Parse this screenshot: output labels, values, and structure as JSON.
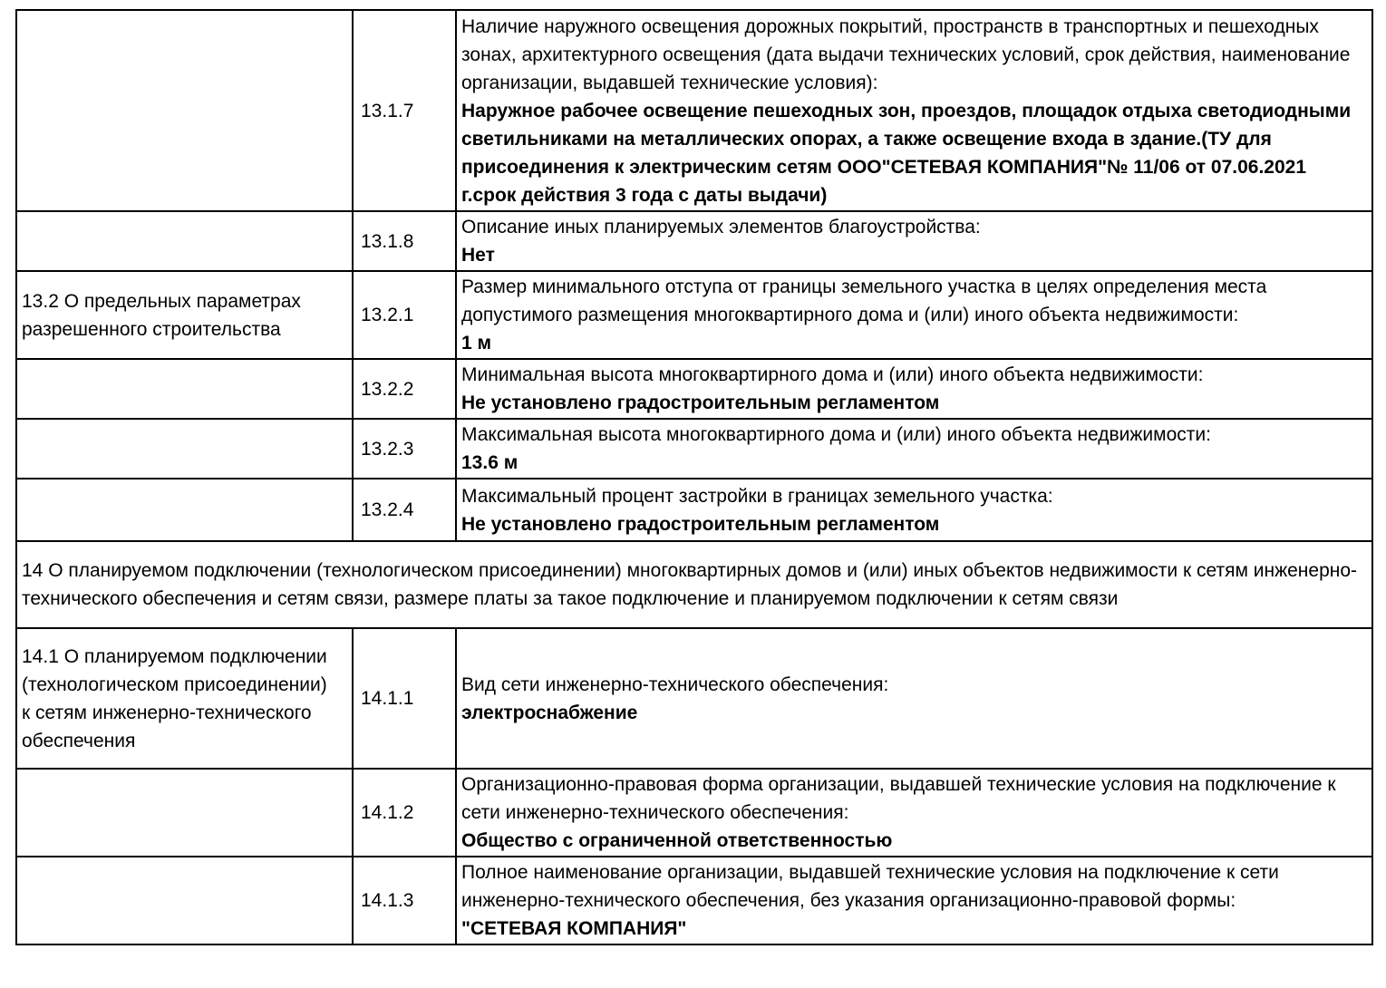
{
  "document": {
    "type": "project-declaration-table",
    "language": "ru",
    "text_color": "#000000",
    "border_color": "#000000",
    "background_color": "#ffffff",
    "table": {
      "rows": [
        {
          "type": "data",
          "section": "",
          "code": "13.1.7",
          "question": "Наличие наружного освещения дорожных покрытий, пространств в транспортных и пешеходных зонах, архитектурного освещения (дата выдачи технических условий, срок действия, наименование организации, выдавшей технические условия):",
          "answer": "Наружное рабочее освещение пешеходных зон, проездов, площадок отдыха светодиодными светильниками на металлических опорах, а также освещение входа в здание.(ТУ для присоединения к электрическим сетям ООО\"СЕТЕВАЯ КОМПАНИЯ\"№ 11/06 от 07.06.2021 г.срок действия 3 года с даты выдачи)"
        },
        {
          "type": "data",
          "section": "",
          "code": "13.1.8",
          "question": "Описание иных планируемых элементов благоустройства:",
          "answer": "Нет"
        },
        {
          "type": "data",
          "section": "13.2 О предельных параметрах разрешенного строительства",
          "code": "13.2.1",
          "question": "Размер минимального отступа от границы земельного участка в целях определения места допустимого размещения многоквартирного дома и (или) иного объекта недвижимости:",
          "answer": "1 м"
        },
        {
          "type": "data",
          "section": "",
          "code": "13.2.2",
          "question": "Минимальная высота многоквартирного дома и (или) иного объекта недвижимости:",
          "answer": "Не установлено градостроительным регламентом"
        },
        {
          "type": "data",
          "section": "",
          "code": "13.2.3",
          "question": "Максимальная высота многоквартирного дома и (или) иного объекта недвижимости:",
          "answer": "13.6 м"
        },
        {
          "type": "data",
          "section": "",
          "code": "13.2.4",
          "question": "Максимальный процент застройки в границах земельного участка:",
          "answer": "Не установлено градостроительным регламентом"
        },
        {
          "type": "section",
          "text": "14 О планируемом подключении (технологическом присоединении) многоквартирных домов и (или) иных объектов недвижимости к сетям инженерно-технического обеспечения и сетям связи, размере платы за такое подключение и планируемом подключении к сетям связи"
        },
        {
          "type": "data",
          "section": "14.1 О планируемом подключении (технологическом присоединении) к сетям инженерно-технического обеспечения",
          "code": "14.1.1",
          "question": "Вид сети инженерно-технического обеспечения:",
          "answer": "электроснабжение"
        },
        {
          "type": "data",
          "section": "",
          "code": "14.1.2",
          "question": "Организационно-правовая форма организации, выдавшей технические условия на подключение к сети инженерно-технического обеспечения:",
          "answer": "Общество с ограниченной ответственностью"
        },
        {
          "type": "data",
          "section": "",
          "code": "14.1.3",
          "question": "Полное наименование организации, выдавшей технические условия на подключение к сети инженерно-технического обеспечения, без указания организационно-правовой формы:",
          "answer": "\"СЕТЕВАЯ КОМПАНИЯ\""
        }
      ]
    }
  }
}
